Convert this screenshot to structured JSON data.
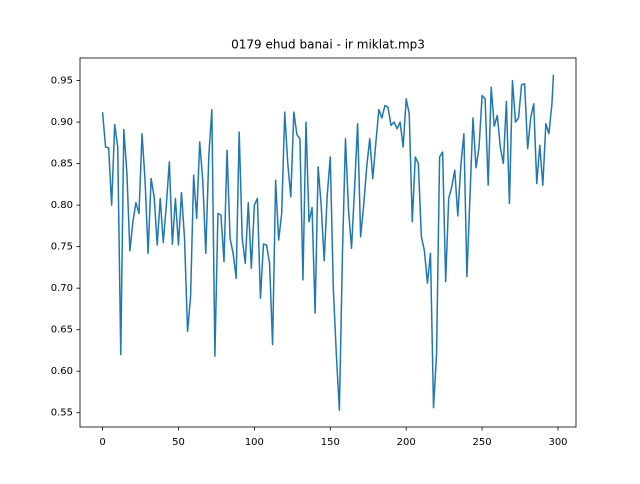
{
  "chart_data": {
    "type": "line",
    "title": "0179 ehud banai - ir miklat.mp3",
    "x": [
      0,
      2,
      4,
      6,
      8,
      10,
      12,
      14,
      16,
      18,
      20,
      22,
      24,
      26,
      28,
      30,
      32,
      34,
      36,
      38,
      40,
      42,
      44,
      46,
      48,
      50,
      52,
      54,
      56,
      58,
      60,
      62,
      64,
      66,
      68,
      70,
      72,
      74,
      76,
      78,
      80,
      82,
      84,
      86,
      88,
      90,
      92,
      94,
      96,
      98,
      100,
      102,
      104,
      106,
      108,
      110,
      112,
      114,
      116,
      118,
      120,
      122,
      124,
      126,
      128,
      130,
      132,
      134,
      136,
      138,
      140,
      142,
      144,
      146,
      148,
      150,
      152,
      154,
      156,
      158,
      160,
      162,
      164,
      166,
      168,
      170,
      172,
      174,
      176,
      178,
      180,
      182,
      184,
      186,
      188,
      190,
      192,
      194,
      196,
      198,
      200,
      202,
      204,
      206,
      208,
      210,
      212,
      214,
      216,
      218,
      220,
      222,
      224,
      226,
      228,
      230,
      232,
      234,
      236,
      238,
      240,
      242,
      244,
      246,
      248,
      250,
      252,
      254,
      256,
      258,
      260,
      262,
      264,
      266,
      268,
      270,
      272,
      274,
      276,
      278,
      280,
      282,
      284,
      286,
      288,
      290,
      292,
      294,
      296,
      297
    ],
    "series": [
      {
        "color": "#1f77b4",
        "values": [
          0.912,
          0.87,
          0.869,
          0.8,
          0.897,
          0.87,
          0.62,
          0.891,
          0.84,
          0.745,
          0.78,
          0.803,
          0.79,
          0.886,
          0.83,
          0.742,
          0.832,
          0.81,
          0.752,
          0.808,
          0.755,
          0.8,
          0.852,
          0.753,
          0.808,
          0.752,
          0.815,
          0.76,
          0.648,
          0.69,
          0.836,
          0.784,
          0.876,
          0.83,
          0.742,
          0.86,
          0.915,
          0.618,
          0.79,
          0.788,
          0.732,
          0.866,
          0.76,
          0.742,
          0.712,
          0.888,
          0.76,
          0.73,
          0.803,
          0.724,
          0.8,
          0.808,
          0.688,
          0.753,
          0.752,
          0.73,
          0.632,
          0.83,
          0.758,
          0.79,
          0.912,
          0.85,
          0.81,
          0.912,
          0.885,
          0.88,
          0.71,
          0.9,
          0.78,
          0.797,
          0.67,
          0.846,
          0.8,
          0.733,
          0.812,
          0.858,
          0.7,
          0.62,
          0.553,
          0.74,
          0.88,
          0.795,
          0.748,
          0.82,
          0.898,
          0.762,
          0.8,
          0.846,
          0.88,
          0.832,
          0.875,
          0.915,
          0.905,
          0.92,
          0.918,
          0.896,
          0.9,
          0.892,
          0.9,
          0.87,
          0.928,
          0.91,
          0.78,
          0.858,
          0.85,
          0.762,
          0.745,
          0.706,
          0.742,
          0.556,
          0.62,
          0.858,
          0.864,
          0.708,
          0.808,
          0.822,
          0.842,
          0.787,
          0.848,
          0.886,
          0.714,
          0.81,
          0.905,
          0.845,
          0.87,
          0.932,
          0.928,
          0.824,
          0.942,
          0.895,
          0.908,
          0.87,
          0.85,
          0.925,
          0.802,
          0.95,
          0.9,
          0.905,
          0.945,
          0.946,
          0.868,
          0.905,
          0.922,
          0.826,
          0.872,
          0.824,
          0.898,
          0.886,
          0.922,
          0.957
        ]
      }
    ],
    "xlim": [
      -14.85,
      311.85
    ],
    "xticks": [
      0,
      50,
      100,
      150,
      200,
      250,
      300
    ],
    "ylim": [
      0.5328,
      0.9772
    ],
    "yticks": [
      0.55,
      {
        "value": 0.6,
        "label": "0.60"
      },
      0.65,
      {
        "value": 0.7,
        "label": "0.70"
      },
      0.75,
      {
        "value": 0.8,
        "label": "0.80"
      },
      0.85,
      {
        "value": 0.9,
        "label": "0.90"
      },
      0.95
    ]
  }
}
